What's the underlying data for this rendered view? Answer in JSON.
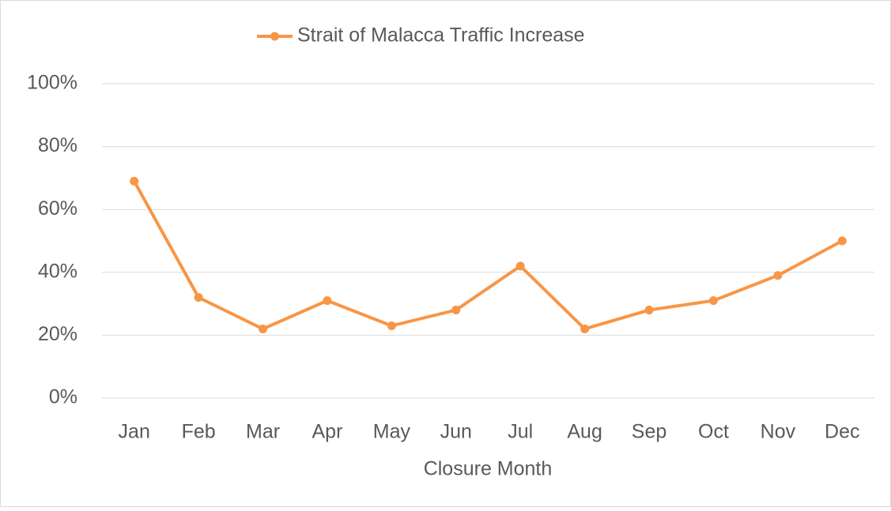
{
  "chart_data": {
    "type": "line",
    "x_label": "Closure Month",
    "categories": [
      "Jan",
      "Feb",
      "Mar",
      "Apr",
      "May",
      "Jun",
      "Jul",
      "Aug",
      "Sep",
      "Oct",
      "Nov",
      "Dec"
    ],
    "series": [
      {
        "name": "Strait of Malacca Traffic Increase",
        "color": "#f79646",
        "values": [
          69,
          32,
          22,
          31,
          23,
          28,
          42,
          22,
          28,
          31,
          39,
          50
        ]
      }
    ],
    "ylim": [
      0,
      100
    ],
    "yticks": [
      {
        "value": 0,
        "label": "0%"
      },
      {
        "value": 20,
        "label": "20%"
      },
      {
        "value": 40,
        "label": "40%"
      },
      {
        "value": 60,
        "label": "60%"
      },
      {
        "value": 80,
        "label": "80%"
      },
      {
        "value": 100,
        "label": "100%"
      }
    ],
    "grid": true,
    "legend": "top"
  }
}
